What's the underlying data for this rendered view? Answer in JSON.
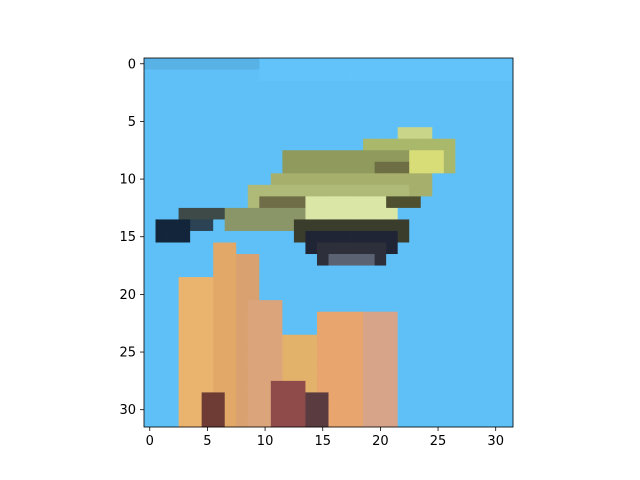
{
  "chart_data": {
    "type": "heatmap",
    "title": "",
    "xlabel": "",
    "ylabel": "",
    "image_size": [
      32,
      32
    ],
    "xlim": [
      -0.5,
      31.5
    ],
    "ylim": [
      31.5,
      -0.5
    ],
    "x_ticks": [
      0,
      5,
      10,
      15,
      20,
      25,
      30
    ],
    "y_ticks": [
      0,
      5,
      10,
      15,
      20,
      25,
      30
    ],
    "x_tick_labels": [
      "0",
      "5",
      "10",
      "15",
      "20",
      "25",
      "30"
    ],
    "y_tick_labels": [
      "0",
      "5",
      "10",
      "15",
      "20",
      "25",
      "30"
    ],
    "grid": false,
    "background_color": "#5ec0f7",
    "regions": [
      {
        "rows": [
          0,
          0
        ],
        "cols": [
          0,
          9
        ],
        "color": "#58b2e6"
      },
      {
        "rows": [
          0,
          1
        ],
        "cols": [
          10,
          31
        ],
        "color": "#62c3fa"
      },
      {
        "rows": [
          6,
          7
        ],
        "cols": [
          22,
          24
        ],
        "color": "#c9d68a"
      },
      {
        "rows": [
          7,
          9
        ],
        "cols": [
          19,
          26
        ],
        "color": "#a9b86a"
      },
      {
        "rows": [
          8,
          10
        ],
        "cols": [
          12,
          22
        ],
        "color": "#8f9a5c"
      },
      {
        "rows": [
          8,
          9
        ],
        "cols": [
          23,
          25
        ],
        "color": "#d8dd78"
      },
      {
        "rows": [
          9,
          10
        ],
        "cols": [
          20,
          22
        ],
        "color": "#6e6e44"
      },
      {
        "rows": [
          10,
          11
        ],
        "cols": [
          11,
          24
        ],
        "color": "#a6b06c"
      },
      {
        "rows": [
          11,
          12
        ],
        "cols": [
          9,
          22
        ],
        "color": "#b0ba78"
      },
      {
        "rows": [
          12,
          13
        ],
        "cols": [
          14,
          21
        ],
        "color": "#d9e6a6"
      },
      {
        "rows": [
          12,
          13
        ],
        "cols": [
          10,
          13
        ],
        "color": "#6f6d48"
      },
      {
        "rows": [
          12,
          12
        ],
        "cols": [
          21,
          23
        ],
        "color": "#4e5030"
      },
      {
        "rows": [
          13,
          13
        ],
        "cols": [
          3,
          9
        ],
        "color": "#3d4a48"
      },
      {
        "rows": [
          13,
          14
        ],
        "cols": [
          7,
          13
        ],
        "color": "#8a9668"
      },
      {
        "rows": [
          14,
          14
        ],
        "cols": [
          2,
          5
        ],
        "color": "#2b4354"
      },
      {
        "rows": [
          14,
          15
        ],
        "cols": [
          1,
          3
        ],
        "color": "#13253a"
      },
      {
        "rows": [
          14,
          15
        ],
        "cols": [
          13,
          22
        ],
        "color": "#3a3d2c"
      },
      {
        "rows": [
          15,
          16
        ],
        "cols": [
          14,
          21
        ],
        "color": "#202536"
      },
      {
        "rows": [
          16,
          17
        ],
        "cols": [
          15,
          20
        ],
        "color": "#2d2f3a"
      },
      {
        "rows": [
          17,
          17
        ],
        "cols": [
          16,
          19
        ],
        "color": "#5b6272"
      },
      {
        "rows": [
          16,
          31
        ],
        "cols": [
          6,
          7
        ],
        "color": "#e2a868"
      },
      {
        "rows": [
          17,
          31
        ],
        "cols": [
          8,
          9
        ],
        "color": "#d9a070"
      },
      {
        "rows": [
          19,
          31
        ],
        "cols": [
          3,
          5
        ],
        "color": "#eab46e"
      },
      {
        "rows": [
          21,
          31
        ],
        "cols": [
          9,
          11
        ],
        "color": "#dba47a"
      },
      {
        "rows": [
          22,
          31
        ],
        "cols": [
          15,
          18
        ],
        "color": "#e9a56e"
      },
      {
        "rows": [
          22,
          31
        ],
        "cols": [
          19,
          21
        ],
        "color": "#d7a48a"
      },
      {
        "rows": [
          24,
          31
        ],
        "cols": [
          12,
          14
        ],
        "color": "#e3b26a"
      },
      {
        "rows": [
          28,
          31
        ],
        "cols": [
          11,
          13
        ],
        "color": "#8f4a4a"
      },
      {
        "rows": [
          29,
          31
        ],
        "cols": [
          5,
          6
        ],
        "color": "#6e3c34"
      },
      {
        "rows": [
          29,
          31
        ],
        "cols": [
          14,
          15
        ],
        "color": "#5a3c40"
      }
    ]
  }
}
